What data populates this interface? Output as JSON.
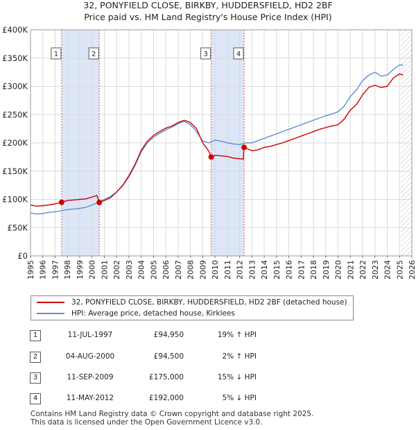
{
  "title_line1": "32, PONYFIELD CLOSE, BIRKBY, HUDDERSFIELD, HD2 2BF",
  "title_line2": "Price paid vs. HM Land Registry's House Price Index (HPI)",
  "chart_data": {
    "type": "line",
    "ylim": [
      0,
      400000
    ],
    "xlim": [
      1995,
      2026
    ],
    "y_ticks": [
      0,
      50000,
      100000,
      150000,
      200000,
      250000,
      300000,
      350000,
      400000
    ],
    "y_tick_labels": [
      "£0",
      "£50K",
      "£100K",
      "£150K",
      "£200K",
      "£250K",
      "£300K",
      "£350K",
      "£400K"
    ],
    "x_ticks": [
      1995,
      1996,
      1997,
      1998,
      1999,
      2000,
      2001,
      2002,
      2003,
      2004,
      2005,
      2006,
      2007,
      2008,
      2009,
      2010,
      2011,
      2012,
      2013,
      2014,
      2015,
      2016,
      2017,
      2018,
      2019,
      2020,
      2021,
      2022,
      2023,
      2024,
      2025,
      2026
    ],
    "x_tick_labels": [
      "1995",
      "1996",
      "1997",
      "1998",
      "1999",
      "2000",
      "2001",
      "2002",
      "2003",
      "2004",
      "2005",
      "2006",
      "2007",
      "2008",
      "2009",
      "2010",
      "2011",
      "2012",
      "2013",
      "2014",
      "2015",
      "2016",
      "2017",
      "2018",
      "2019",
      "2020",
      "2021",
      "2022",
      "2023",
      "2024",
      "2025",
      "2026"
    ],
    "grid": true,
    "shaded_periods": [
      [
        1997.53,
        2000.59
      ],
      [
        2009.69,
        2012.36
      ]
    ],
    "forecast_start": 2025.1,
    "series": [
      {
        "name": "32, PONYFIELD CLOSE, BIRKBY, HUDDERSFIELD, HD2 2BF (detached house)",
        "color": "#cc0000",
        "x": [
          1995.0,
          1995.5,
          1996.0,
          1996.5,
          1997.0,
          1997.53,
          1998.0,
          1998.5,
          1999.0,
          1999.5,
          2000.0,
          2000.4,
          2000.59,
          2001.0,
          2001.5,
          2002.0,
          2002.5,
          2003.0,
          2003.5,
          2004.0,
          2004.5,
          2005.0,
          2005.5,
          2006.0,
          2006.5,
          2007.0,
          2007.5,
          2008.0,
          2008.5,
          2009.0,
          2009.5,
          2009.69,
          2010.0,
          2010.5,
          2011.0,
          2011.5,
          2012.0,
          2012.3,
          2012.36,
          2013.0,
          2013.5,
          2014.0,
          2014.5,
          2015.0,
          2015.5,
          2016.0,
          2016.5,
          2017.0,
          2017.5,
          2018.0,
          2018.5,
          2019.0,
          2019.5,
          2020.0,
          2020.5,
          2021.0,
          2021.5,
          2022.0,
          2022.5,
          2023.0,
          2023.5,
          2024.0,
          2024.5,
          2025.0,
          2025.3
        ],
        "values": [
          90000,
          88000,
          89000,
          90000,
          92000,
          94950,
          98000,
          99000,
          100000,
          101000,
          104000,
          107000,
          94500,
          98000,
          103000,
          113000,
          125000,
          142000,
          162000,
          187000,
          203000,
          213000,
          220000,
          226000,
          230000,
          236000,
          240000,
          236000,
          225000,
          200000,
          185000,
          175000,
          178000,
          177000,
          176000,
          173000,
          172000,
          171000,
          192000,
          186000,
          188000,
          192000,
          194000,
          197000,
          200000,
          204000,
          208000,
          212000,
          216000,
          220000,
          224000,
          227000,
          230000,
          232000,
          242000,
          258000,
          268000,
          285000,
          298000,
          302000,
          298000,
          300000,
          315000,
          322000,
          320000
        ]
      },
      {
        "name": "HPI: Average price, detached house, Kirklees",
        "color": "#5b8ed6",
        "x": [
          1995.0,
          1995.5,
          1996.0,
          1996.5,
          1997.0,
          1997.5,
          1998.0,
          1998.5,
          1999.0,
          1999.5,
          2000.0,
          2000.5,
          2001.0,
          2001.5,
          2002.0,
          2002.5,
          2003.0,
          2003.5,
          2004.0,
          2004.5,
          2005.0,
          2005.5,
          2006.0,
          2006.5,
          2007.0,
          2007.5,
          2008.0,
          2008.5,
          2009.0,
          2009.5,
          2010.0,
          2010.5,
          2011.0,
          2011.5,
          2012.0,
          2012.5,
          2013.0,
          2013.5,
          2014.0,
          2014.5,
          2015.0,
          2015.5,
          2016.0,
          2016.5,
          2017.0,
          2017.5,
          2018.0,
          2018.5,
          2019.0,
          2019.5,
          2020.0,
          2020.5,
          2021.0,
          2021.5,
          2022.0,
          2022.5,
          2023.0,
          2023.5,
          2024.0,
          2024.5,
          2025.0,
          2025.3
        ],
        "values": [
          76000,
          74000,
          75000,
          77000,
          78000,
          80000,
          82000,
          83000,
          84000,
          86000,
          90000,
          95000,
          100000,
          105000,
          113000,
          124000,
          140000,
          160000,
          184000,
          200000,
          210000,
          217000,
          223000,
          228000,
          234000,
          238000,
          232000,
          220000,
          203000,
          200000,
          205000,
          203000,
          200000,
          198000,
          197000,
          200000,
          200000,
          204000,
          208000,
          212000,
          216000,
          220000,
          224000,
          228000,
          232000,
          236000,
          240000,
          244000,
          248000,
          251000,
          255000,
          265000,
          282000,
          294000,
          310000,
          320000,
          325000,
          318000,
          320000,
          330000,
          338000,
          337000
        ]
      }
    ],
    "sales": [
      {
        "label": "1",
        "x": 1997.53,
        "value": 94950
      },
      {
        "label": "2",
        "x": 2000.59,
        "value": 94500
      },
      {
        "label": "3",
        "x": 2009.69,
        "value": 175000
      },
      {
        "label": "4",
        "x": 2012.36,
        "value": 192000
      }
    ]
  },
  "legend": {
    "property": "32, PONYFIELD CLOSE, BIRKBY, HUDDERSFIELD, HD2 2BF (detached house)",
    "hpi": "HPI: Average price, detached house, Kirklees"
  },
  "transactions": [
    {
      "num": "1",
      "date": "11-JUL-1997",
      "price": "£94,950",
      "hpi": "19% ↑ HPI"
    },
    {
      "num": "2",
      "date": "04-AUG-2000",
      "price": "£94,500",
      "hpi": "2% ↑ HPI"
    },
    {
      "num": "3",
      "date": "11-SEP-2009",
      "price": "£175,000",
      "hpi": "15% ↓ HPI"
    },
    {
      "num": "4",
      "date": "11-MAY-2012",
      "price": "£192,000",
      "hpi": "5% ↓ HPI"
    }
  ],
  "footer": {
    "line1": "Contains HM Land Registry data © Crown copyright and database right 2025.",
    "line2": "This data is licensed under the Open Government Licence v3.0."
  }
}
